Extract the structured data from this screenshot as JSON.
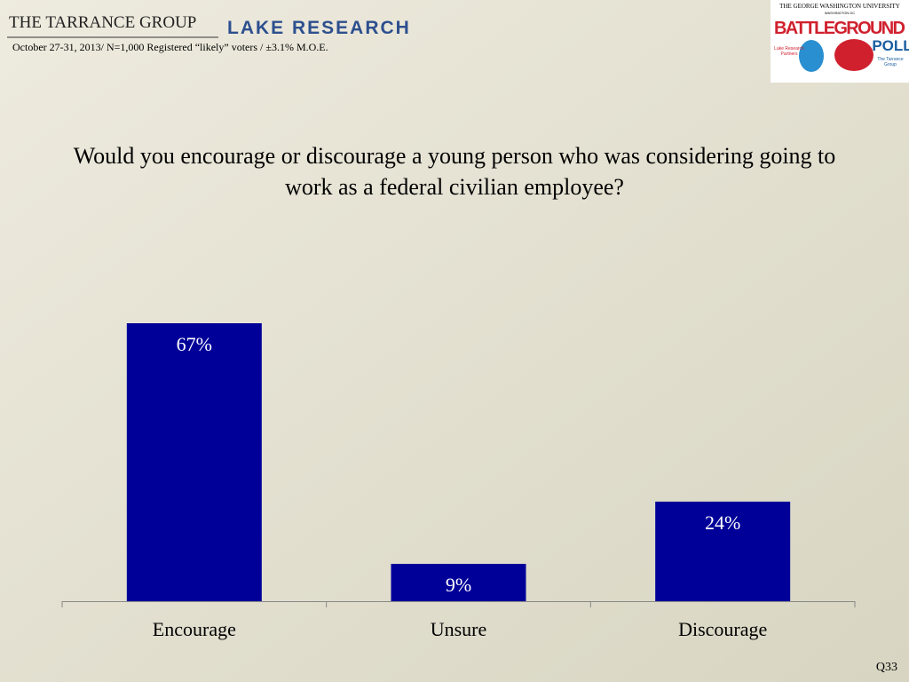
{
  "header": {
    "brand_left": "THE TARRANCE GROUP",
    "brand_right": "LAKE RESEARCH",
    "survey_note": "October 27-31, 2013/ N=1,000 Registered “likely” voters / ±3.1% M.O.E.",
    "logo": {
      "university": "THE GEORGE WASHINGTON UNIVERSITY",
      "city": "WASHINGTON DC",
      "name_top": "BATTLEGROUND",
      "name_bottom": "POLL",
      "partner_left": "Lake Research Partners",
      "partner_right": "The Tarrance Group"
    }
  },
  "chart_data": {
    "type": "bar",
    "title": "Would you encourage or discourage a young person who was considering going to work as a federal civilian employee?",
    "categories": [
      "Encourage",
      "Unsure",
      "Discourage"
    ],
    "values": [
      67,
      9,
      24
    ],
    "value_labels": [
      "67%",
      "9%",
      "24%"
    ],
    "color": "#000099"
  },
  "footer": {
    "question_id": "Q33"
  }
}
